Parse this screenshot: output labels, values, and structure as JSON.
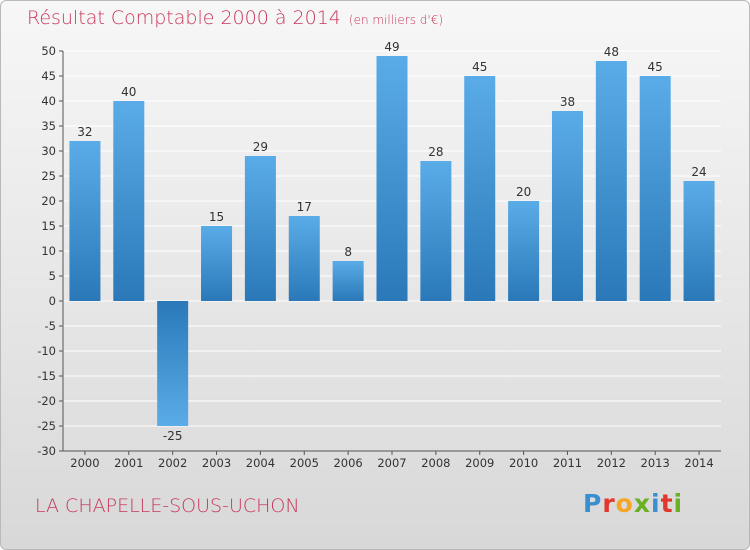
{
  "header": {
    "title": "Résultat Comptable 2000 à 2014",
    "unit": "(en milliers d'€)"
  },
  "footer": {
    "commune": "LA CHAPELLE-SOUS-UCHON",
    "brand_letters": [
      "P",
      "r",
      "o",
      "x",
      "i",
      "t",
      "i"
    ],
    "brand_colors": [
      "#3a8fd0",
      "#e2382b",
      "#f5a623",
      "#6ab023",
      "#3a8fd0",
      "#e2382b",
      "#6ab023"
    ]
  },
  "colors": {
    "title": "#c8375a",
    "bar_light": "#5aace8",
    "bar_dark": "#2a78b8",
    "grid": "#ffffff",
    "axis": "#555555"
  },
  "chart_data": {
    "type": "bar",
    "title": "Résultat Comptable 2000 à 2014",
    "xlabel": "",
    "ylabel": "en milliers d'€",
    "ylim": [
      -30,
      50
    ],
    "yticks": [
      50,
      45,
      40,
      35,
      30,
      25,
      20,
      15,
      10,
      5,
      0,
      -5,
      -10,
      -15,
      -20,
      -25,
      -30
    ],
    "categories": [
      "2000",
      "2001",
      "2002",
      "2003",
      "2004",
      "2005",
      "2006",
      "2007",
      "2008",
      "2009",
      "2010",
      "2011",
      "2012",
      "2013",
      "2014"
    ],
    "values": [
      32,
      40,
      -25,
      15,
      29,
      17,
      8,
      49,
      28,
      45,
      20,
      38,
      48,
      45,
      24
    ],
    "grid": true
  }
}
